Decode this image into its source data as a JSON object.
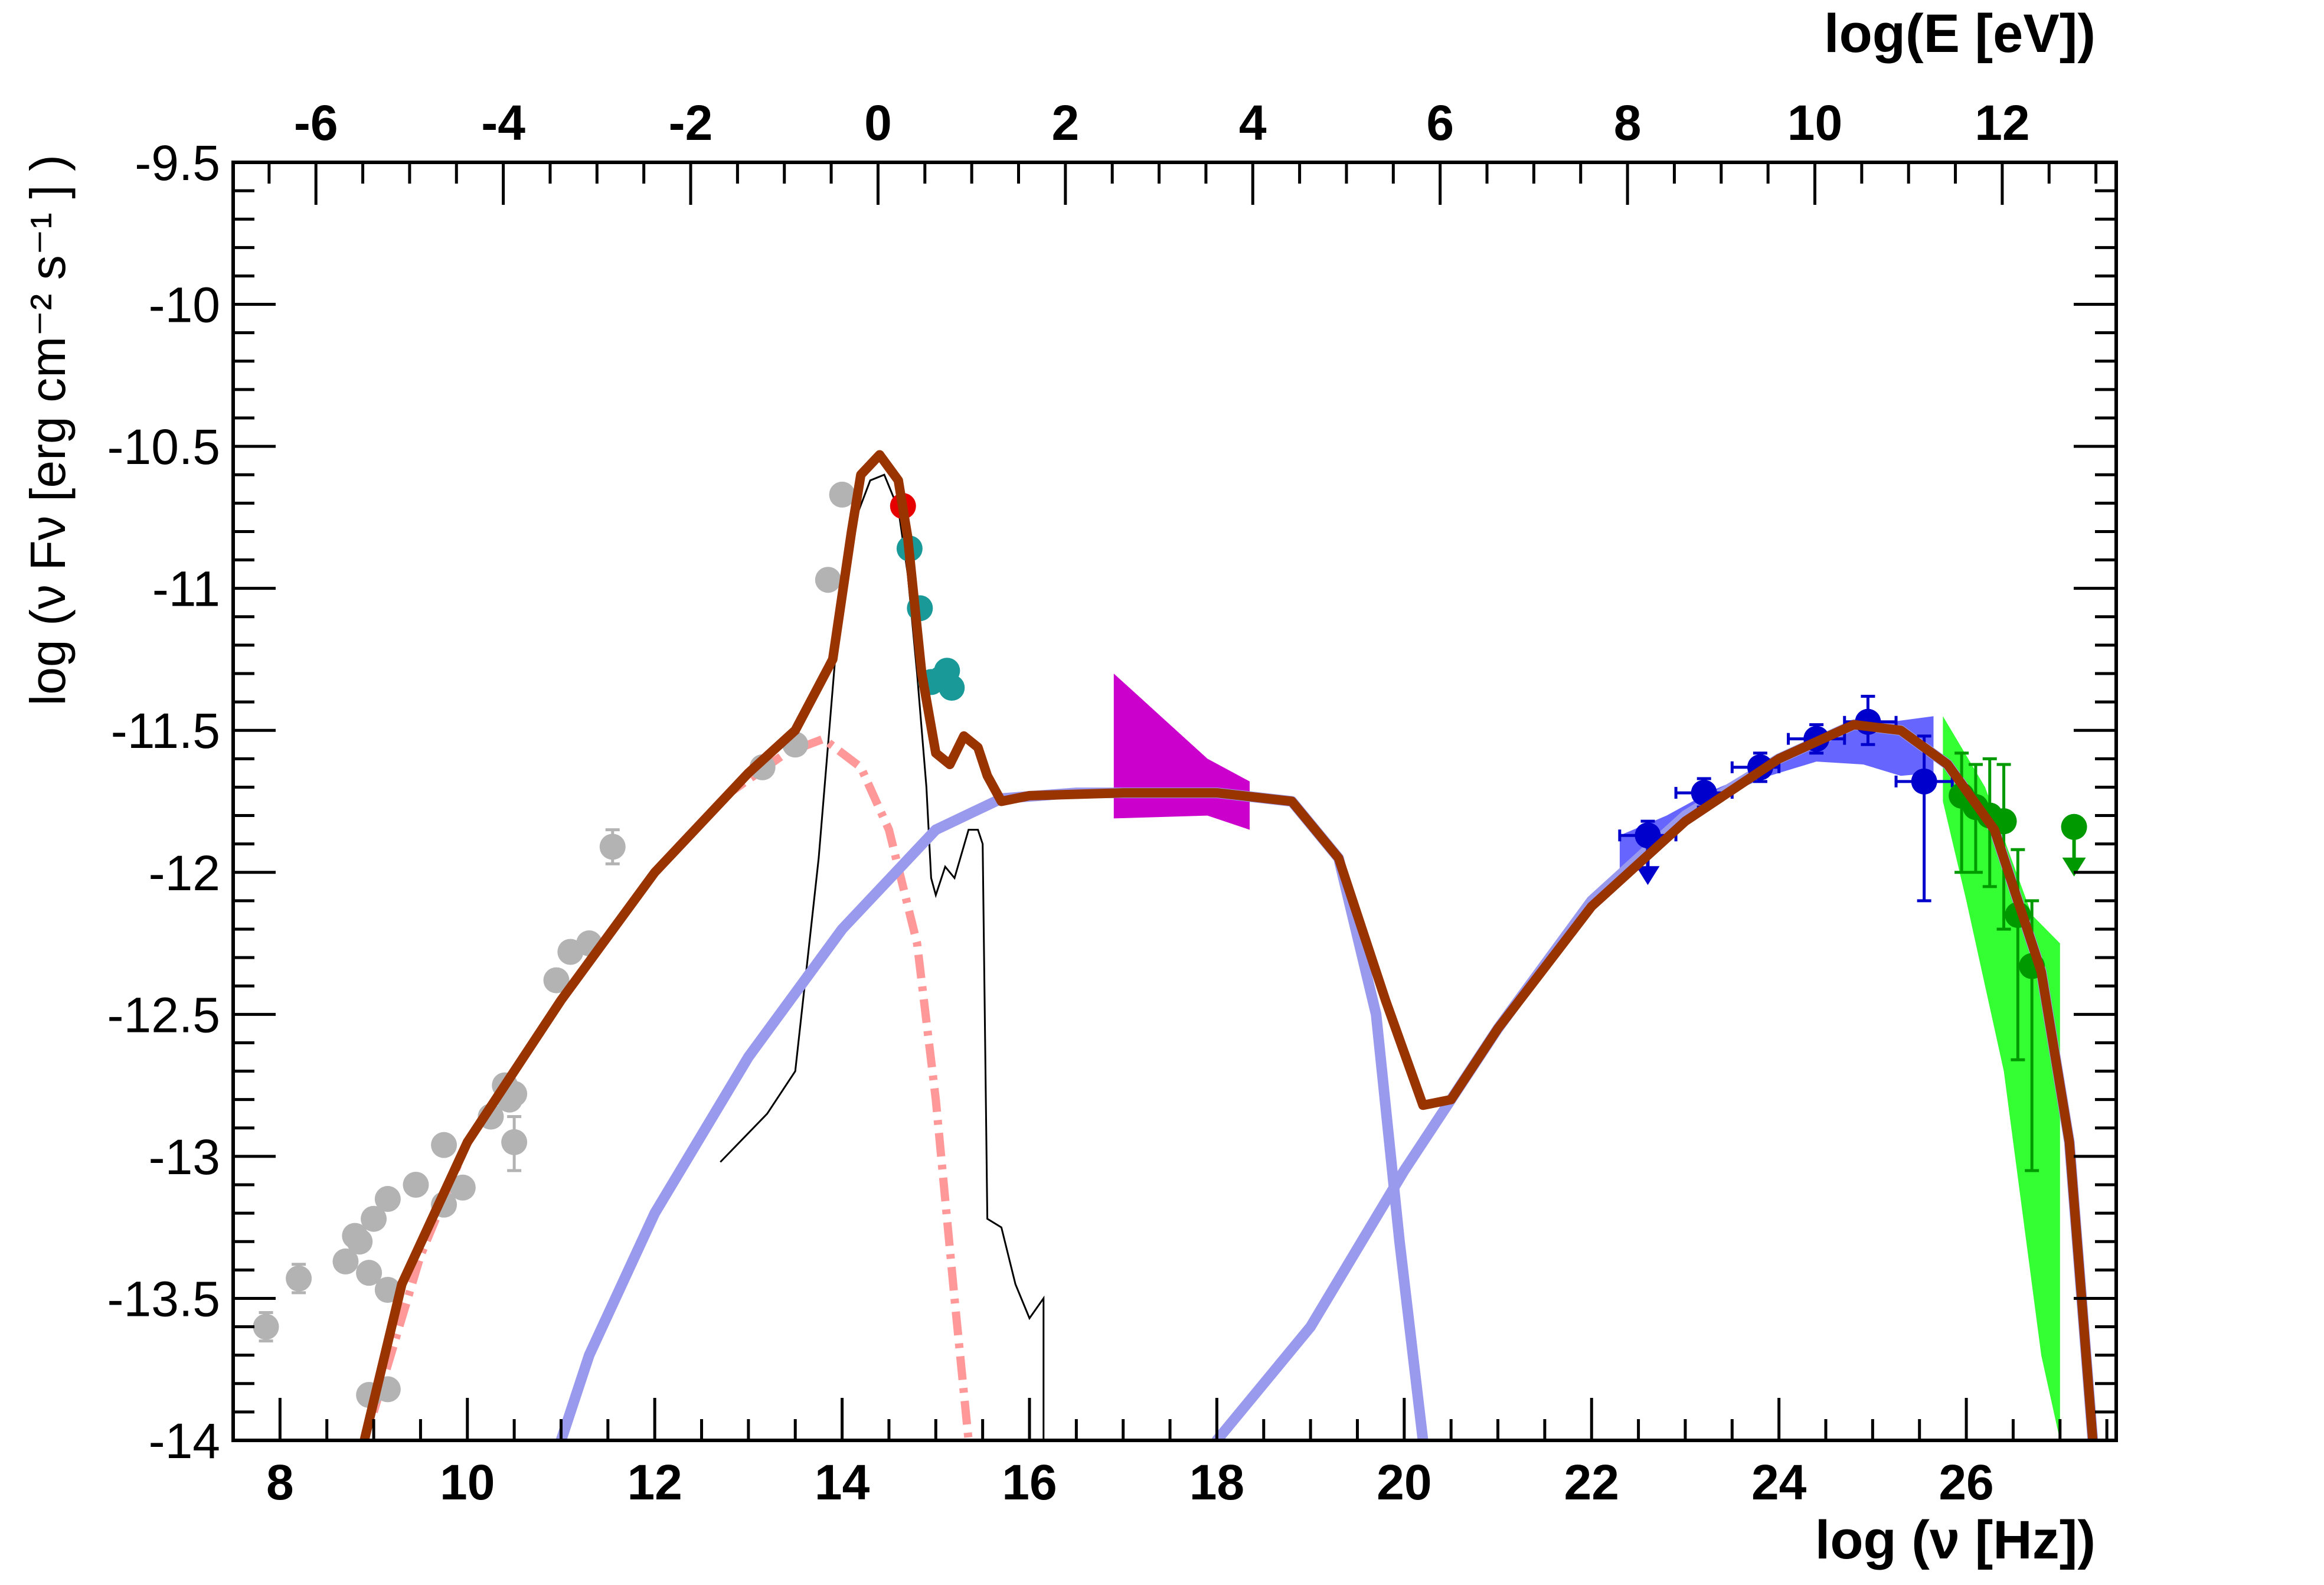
{
  "chart_data": {
    "type": "scatter",
    "xlabel": "log (ν [Hz])",
    "ylabel": "log (ν Fν [erg cm⁻² s⁻¹ ] )",
    "x2label": "log(E [eV])",
    "xlim": [
      7.5,
      27.6
    ],
    "ylim": [
      -14,
      -9.5
    ],
    "x_ticks": [
      "8",
      "10",
      "12",
      "14",
      "16",
      "18",
      "20",
      "22",
      "24",
      "26"
    ],
    "x_tick_values": [
      8,
      10,
      12,
      14,
      16,
      18,
      20,
      22,
      24,
      26
    ],
    "y_ticks": [
      "-9.5",
      "-10",
      "-10.5",
      "-11",
      "-11.5",
      "-12",
      "-12.5",
      "-13",
      "-13.5",
      "-14"
    ],
    "y_tick_values": [
      -9.5,
      -10,
      -10.5,
      -11,
      -11.5,
      -12,
      -12.5,
      -13,
      -13.5,
      -14
    ],
    "x2_ticks": [
      "-6",
      "-4",
      "-2",
      "0",
      "2",
      "4",
      "6",
      "8",
      "10",
      "12"
    ],
    "x2_tick_values": [
      -6,
      -4,
      -2,
      0,
      2,
      4,
      6,
      8,
      10,
      12
    ],
    "grid": false,
    "colors": {
      "archival": "#b3b3b3",
      "optical_red": "#e60000",
      "optical_teal": "#1a9999",
      "xray_bowtie": "#cc00cc",
      "fermi": "#0000cc",
      "fermi_band": "#6666ff",
      "tev": "#009900",
      "tev_band": "#33ff33",
      "synchrotron_disk": "#ff9999",
      "ic": "#9999ee",
      "total_model": "#993300",
      "host_template": "#000000"
    },
    "series": [
      {
        "type": "scatter-errorbars",
        "color_key": "archival",
        "points": [
          {
            "x": 7.85,
            "y": -13.6,
            "ylo": -13.65,
            "yhi": -13.55
          },
          {
            "x": 8.2,
            "y": -13.43,
            "ylo": -13.48,
            "yhi": -13.38
          },
          {
            "x": 8.7,
            "y": -13.37
          },
          {
            "x": 8.8,
            "y": -13.28
          },
          {
            "x": 8.85,
            "y": -13.3
          },
          {
            "x": 8.95,
            "y": -13.41
          },
          {
            "x": 9.0,
            "y": -13.22
          },
          {
            "x": 9.15,
            "y": -13.15
          },
          {
            "x": 9.15,
            "y": -13.47
          },
          {
            "x": 9.45,
            "y": -13.1
          },
          {
            "x": 9.75,
            "y": -12.96
          },
          {
            "x": 9.75,
            "y": -13.17
          },
          {
            "x": 9.95,
            "y": -13.11
          },
          {
            "x": 10.25,
            "y": -12.86
          },
          {
            "x": 10.4,
            "y": -12.75
          },
          {
            "x": 10.45,
            "y": -12.8
          },
          {
            "x": 10.5,
            "y": -12.95,
            "ylo": -13.05,
            "yhi": -12.86
          },
          {
            "x": 10.5,
            "y": -12.78
          },
          {
            "x": 10.95,
            "y": -12.38
          },
          {
            "x": 11.1,
            "y": -12.28
          },
          {
            "x": 11.3,
            "y": -12.25
          },
          {
            "x": 11.55,
            "y": -11.91,
            "ylo": -11.97,
            "yhi": -11.85
          },
          {
            "x": 13.15,
            "y": -11.63
          },
          {
            "x": 13.5,
            "y": -11.55
          },
          {
            "x": 13.85,
            "y": -10.97
          },
          {
            "x": 14.0,
            "y": -10.67
          },
          {
            "x": 8.95,
            "y": -13.84
          },
          {
            "x": 9.15,
            "y": -13.82
          }
        ]
      },
      {
        "type": "scatter",
        "color_key": "optical_red",
        "points": [
          {
            "x": 14.65,
            "y": -10.71
          }
        ]
      },
      {
        "type": "scatter",
        "color_key": "optical_teal",
        "points": [
          {
            "x": 14.72,
            "y": -10.86
          },
          {
            "x": 14.83,
            "y": -11.07
          },
          {
            "x": 14.95,
            "y": -11.33
          },
          {
            "x": 15.05,
            "y": -11.32
          },
          {
            "x": 15.12,
            "y": -11.29
          },
          {
            "x": 15.17,
            "y": -11.35
          }
        ]
      },
      {
        "type": "bowtie",
        "color_key": "xray_bowtie",
        "polygon": [
          [
            16.9,
            -11.3
          ],
          [
            17.9,
            -11.6
          ],
          [
            18.35,
            -11.68
          ],
          [
            18.35,
            -11.85
          ],
          [
            17.9,
            -11.8
          ],
          [
            16.9,
            -11.81
          ]
        ]
      },
      {
        "type": "band",
        "color_key": "fermi_band",
        "polygon": [
          [
            22.3,
            -11.87
          ],
          [
            22.8,
            -11.8
          ],
          [
            23.3,
            -11.71
          ],
          [
            23.8,
            -11.64
          ],
          [
            24.3,
            -11.55
          ],
          [
            24.8,
            -11.49
          ],
          [
            25.2,
            -11.47
          ],
          [
            25.65,
            -11.45
          ],
          [
            25.65,
            -11.65
          ],
          [
            25.3,
            -11.66
          ],
          [
            24.9,
            -11.62
          ],
          [
            24.4,
            -11.61
          ],
          [
            23.9,
            -11.66
          ],
          [
            23.4,
            -11.73
          ],
          [
            22.9,
            -11.83
          ],
          [
            22.5,
            -11.93
          ],
          [
            22.3,
            -12.02
          ]
        ]
      },
      {
        "type": "scatter-errorbars",
        "color_key": "fermi",
        "points": [
          {
            "x": 22.6,
            "y": -11.87,
            "xlo": 22.3,
            "xhi": 22.9,
            "ylo": -12.0,
            "yhi": -11.82,
            "upper_limit": true
          },
          {
            "x": 23.2,
            "y": -11.72,
            "xlo": 22.9,
            "xhi": 23.5,
            "ylo": -11.77,
            "yhi": -11.67
          },
          {
            "x": 23.8,
            "y": -11.63,
            "xlo": 23.5,
            "xhi": 24.0,
            "ylo": -11.68,
            "yhi": -11.58
          },
          {
            "x": 24.4,
            "y": -11.53,
            "xlo": 24.1,
            "xhi": 24.7,
            "ylo": -11.58,
            "yhi": -11.48
          },
          {
            "x": 24.95,
            "y": -11.47,
            "xlo": 24.7,
            "xhi": 25.25,
            "ylo": -11.55,
            "yhi": -11.38
          },
          {
            "x": 25.55,
            "y": -11.68,
            "xlo": 25.25,
            "xhi": 25.85,
            "ylo": -12.1,
            "yhi": -11.52
          }
        ]
      },
      {
        "type": "band",
        "color_key": "tev_band",
        "polygon": [
          [
            25.75,
            -11.45
          ],
          [
            26.2,
            -11.7
          ],
          [
            26.7,
            -12.15
          ],
          [
            27.0,
            -12.25
          ],
          [
            27.0,
            -14.0
          ],
          [
            26.8,
            -13.7
          ],
          [
            26.4,
            -12.7
          ],
          [
            26.0,
            -12.1
          ],
          [
            25.75,
            -11.75
          ]
        ]
      },
      {
        "type": "scatter-errorbars",
        "color_key": "tev",
        "points": [
          {
            "x": 25.95,
            "y": -11.73,
            "ylo": -12.0,
            "yhi": -11.58
          },
          {
            "x": 26.1,
            "y": -11.77,
            "ylo": -12.0,
            "yhi": -11.62
          },
          {
            "x": 26.25,
            "y": -11.8,
            "ylo": -12.05,
            "yhi": -11.6
          },
          {
            "x": 26.4,
            "y": -11.82,
            "ylo": -12.2,
            "yhi": -11.62
          },
          {
            "x": 26.55,
            "y": -12.15,
            "ylo": -12.66,
            "yhi": -11.92
          },
          {
            "x": 26.7,
            "y": -12.33,
            "ylo": -13.05,
            "yhi": -12.1
          },
          {
            "x": 27.15,
            "y": -11.84,
            "upper_limit": true
          }
        ]
      }
    ],
    "models": {
      "host_template": [
        [
          12.7,
          -13.02
        ],
        [
          13.2,
          -12.85
        ],
        [
          13.5,
          -12.7
        ],
        [
          13.6,
          -12.4
        ],
        [
          13.75,
          -11.95
        ],
        [
          13.85,
          -11.55
        ],
        [
          13.95,
          -11.15
        ],
        [
          14.05,
          -10.95
        ],
        [
          14.15,
          -10.75
        ],
        [
          14.3,
          -10.62
        ],
        [
          14.45,
          -10.6
        ],
        [
          14.6,
          -10.72
        ],
        [
          14.7,
          -10.95
        ],
        [
          14.8,
          -11.3
        ],
        [
          14.9,
          -11.7
        ],
        [
          14.95,
          -12.02
        ],
        [
          15.0,
          -12.08
        ],
        [
          15.1,
          -11.98
        ],
        [
          15.2,
          -12.02
        ],
        [
          15.35,
          -11.85
        ],
        [
          15.45,
          -11.85
        ],
        [
          15.5,
          -11.9
        ],
        [
          15.55,
          -13.22
        ],
        [
          15.7,
          -13.25
        ],
        [
          15.85,
          -13.45
        ],
        [
          16.0,
          -13.57
        ],
        [
          16.15,
          -13.5
        ],
        [
          16.15,
          -14.0
        ]
      ],
      "synchrotron_disk": [
        [
          9.0,
          -13.9
        ],
        [
          9.5,
          -13.35
        ],
        [
          10.0,
          -12.95
        ],
        [
          11.0,
          -12.45
        ],
        [
          12.0,
          -12.0
        ],
        [
          12.8,
          -11.72
        ],
        [
          13.4,
          -11.58
        ],
        [
          13.8,
          -11.53
        ],
        [
          14.2,
          -11.63
        ],
        [
          14.5,
          -11.85
        ],
        [
          14.8,
          -12.25
        ],
        [
          15.0,
          -12.8
        ],
        [
          15.2,
          -13.5
        ],
        [
          15.35,
          -14.0
        ]
      ],
      "ic_sync": [
        [
          11.0,
          -14.0
        ],
        [
          11.3,
          -13.7
        ],
        [
          12.0,
          -13.2
        ],
        [
          13.0,
          -12.65
        ],
        [
          14.0,
          -12.2
        ],
        [
          15.0,
          -11.85
        ],
        [
          15.7,
          -11.74
        ],
        [
          16.5,
          -11.72
        ],
        [
          18.0,
          -11.72
        ],
        [
          18.8,
          -11.75
        ],
        [
          19.3,
          -11.95
        ],
        [
          19.7,
          -12.5
        ],
        [
          19.95,
          -13.3
        ],
        [
          20.2,
          -14.0
        ]
      ],
      "ic_compton": [
        [
          18.0,
          -14.0
        ],
        [
          19.0,
          -13.6
        ],
        [
          20.0,
          -13.05
        ],
        [
          21.0,
          -12.55
        ],
        [
          22.0,
          -12.1
        ],
        [
          23.0,
          -11.8
        ],
        [
          24.0,
          -11.6
        ],
        [
          24.8,
          -11.48
        ],
        [
          25.3,
          -11.5
        ],
        [
          25.8,
          -11.62
        ],
        [
          26.3,
          -11.85
        ],
        [
          26.8,
          -12.35
        ],
        [
          27.1,
          -12.95
        ],
        [
          27.35,
          -14.0
        ]
      ],
      "total": [
        [
          8.9,
          -14.0
        ],
        [
          9.3,
          -13.45
        ],
        [
          10.0,
          -12.95
        ],
        [
          11.0,
          -12.45
        ],
        [
          12.0,
          -12.0
        ],
        [
          13.0,
          -11.65
        ],
        [
          13.5,
          -11.5
        ],
        [
          13.9,
          -11.25
        ],
        [
          14.1,
          -10.8
        ],
        [
          14.2,
          -10.6
        ],
        [
          14.4,
          -10.53
        ],
        [
          14.6,
          -10.62
        ],
        [
          14.7,
          -10.82
        ],
        [
          14.85,
          -11.3
        ],
        [
          15.0,
          -11.58
        ],
        [
          15.15,
          -11.62
        ],
        [
          15.3,
          -11.52
        ],
        [
          15.45,
          -11.56
        ],
        [
          15.55,
          -11.66
        ],
        [
          15.7,
          -11.75
        ],
        [
          16.0,
          -11.73
        ],
        [
          17.0,
          -11.72
        ],
        [
          18.0,
          -11.72
        ],
        [
          18.8,
          -11.75
        ],
        [
          19.3,
          -11.95
        ],
        [
          19.8,
          -12.45
        ],
        [
          20.2,
          -12.82
        ],
        [
          20.5,
          -12.8
        ],
        [
          21.0,
          -12.55
        ],
        [
          22.0,
          -12.12
        ],
        [
          23.0,
          -11.82
        ],
        [
          24.0,
          -11.6
        ],
        [
          24.8,
          -11.48
        ],
        [
          25.3,
          -11.5
        ],
        [
          25.8,
          -11.62
        ],
        [
          26.3,
          -11.85
        ],
        [
          26.8,
          -12.35
        ],
        [
          27.1,
          -12.95
        ],
        [
          27.35,
          -14.0
        ]
      ]
    }
  }
}
